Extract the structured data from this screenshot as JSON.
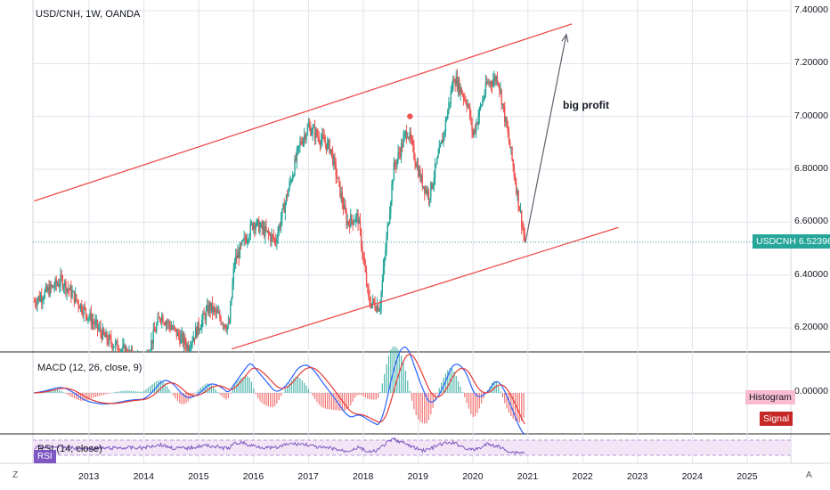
{
  "colors": {
    "up": "#26a69a",
    "down": "#ef5350",
    "channel": "#ef4d4d",
    "arrow": "#5d606b",
    "grid": "#e0e3eb",
    "divider": "#222222",
    "price_tag": "#26a69a",
    "macd_line": "#2962ff",
    "signal_line": "#e53935",
    "rsi_line": "#7e57c2",
    "rsi_band": "#f3e5f5",
    "histogram_tag": "#f8bbd0"
  },
  "main_legend": "USD/CNH, 1W, OANDA",
  "annotation": "big profit",
  "price_tag": {
    "symbol": "USDCNH",
    "value": "6.52396"
  },
  "price_axis": [
    "7.40000",
    "7.20000",
    "7.00000",
    "6.80000",
    "6.60000",
    "6.40000",
    "6.20000"
  ],
  "macd": {
    "legend": "MACD (12, 26, close, 9)",
    "zero_label": "0.00000",
    "histogram_tag": "Histogram",
    "signal_tag": "Signal"
  },
  "rsi": {
    "legend": "RSI (14, close)",
    "tag": "RSI"
  },
  "time_axis": [
    "2013",
    "2014",
    "2015",
    "2016",
    "2017",
    "2018",
    "2019",
    "2020",
    "2021",
    "2022",
    "2023",
    "2024",
    "2025"
  ],
  "corners": {
    "left": "Z",
    "right": "A"
  },
  "chart_data": {
    "type": "candlestick",
    "title": "USD/CNH, 1W, OANDA",
    "x_range": [
      2012.0,
      2026.0
    ],
    "ylim": [
      6.1,
      7.45
    ],
    "last_price": 6.52396,
    "key_points": [
      {
        "date": 2012.0,
        "price": 6.3
      },
      {
        "date": 2012.5,
        "price": 6.38
      },
      {
        "date": 2013.3,
        "price": 6.16
      },
      {
        "date": 2014.0,
        "price": 6.06
      },
      {
        "date": 2014.3,
        "price": 6.25
      },
      {
        "date": 2014.8,
        "price": 6.13
      },
      {
        "date": 2015.2,
        "price": 6.28
      },
      {
        "date": 2015.55,
        "price": 6.2
      },
      {
        "date": 2015.65,
        "price": 6.45
      },
      {
        "date": 2016.0,
        "price": 6.6
      },
      {
        "date": 2016.4,
        "price": 6.53
      },
      {
        "date": 2016.85,
        "price": 6.9
      },
      {
        "date": 2017.0,
        "price": 6.96
      },
      {
        "date": 2017.4,
        "price": 6.88
      },
      {
        "date": 2017.7,
        "price": 6.6
      },
      {
        "date": 2017.9,
        "price": 6.62
      },
      {
        "date": 2018.1,
        "price": 6.3
      },
      {
        "date": 2018.3,
        "price": 6.28
      },
      {
        "date": 2018.55,
        "price": 6.8
      },
      {
        "date": 2018.8,
        "price": 6.95
      },
      {
        "date": 2019.05,
        "price": 6.76
      },
      {
        "date": 2019.2,
        "price": 6.7
      },
      {
        "date": 2019.45,
        "price": 6.92
      },
      {
        "date": 2019.65,
        "price": 7.15
      },
      {
        "date": 2019.9,
        "price": 7.05
      },
      {
        "date": 2020.0,
        "price": 6.93
      },
      {
        "date": 2020.25,
        "price": 7.12
      },
      {
        "date": 2020.45,
        "price": 7.15
      },
      {
        "date": 2020.7,
        "price": 6.85
      },
      {
        "date": 2020.85,
        "price": 6.65
      },
      {
        "date": 2020.95,
        "price": 6.52
      }
    ],
    "channel_upper": [
      [
        2012.0,
        6.68
      ],
      [
        2021.8,
        7.35
      ]
    ],
    "channel_lower": [
      [
        2015.6,
        6.12
      ],
      [
        2022.65,
        6.58
      ]
    ],
    "projection_arrow": [
      [
        2020.95,
        6.52
      ],
      [
        2021.7,
        7.31
      ]
    ],
    "marker": {
      "date": 2018.85,
      "price": 7.0
    }
  }
}
